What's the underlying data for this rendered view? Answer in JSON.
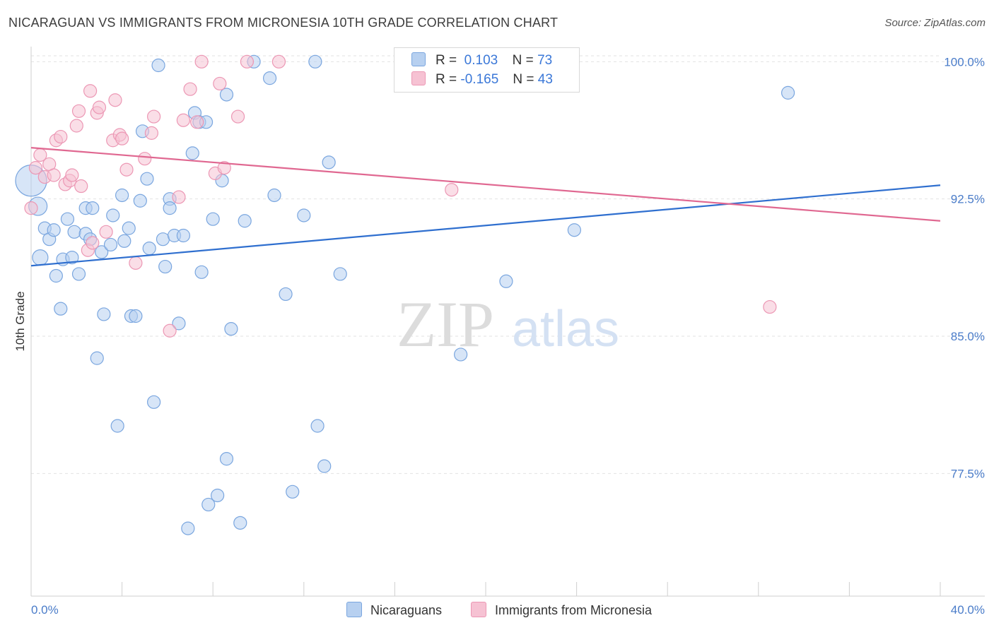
{
  "header": {
    "title": "NICARAGUAN VS IMMIGRANTS FROM MICRONESIA 10TH GRADE CORRELATION CHART",
    "source": "Source: ZipAtlas.com"
  },
  "watermark": {
    "zip": "ZIP",
    "atlas": "atlas"
  },
  "legend": {
    "r_label": "R =",
    "n_label": "N =",
    "series1": {
      "r": "0.103",
      "n": "73"
    },
    "series2": {
      "r": "-0.165",
      "n": "43"
    }
  },
  "colors": {
    "blue_fill": "#b7d0f0",
    "blue_stroke": "#7aa6df",
    "blue_line": "#2f6fcf",
    "pink_fill": "#f6c2d3",
    "pink_stroke": "#ec97b4",
    "pink_line": "#e06891",
    "grid": "#e2e2e2",
    "tick_text": "#4a7cc9"
  },
  "chart_data": {
    "type": "scatter",
    "title": "NICARAGUAN VS IMMIGRANTS FROM MICRONESIA 10TH GRADE CORRELATION CHART",
    "ylabel": "10th Grade",
    "xlim": [
      0,
      40
    ],
    "ylim": [
      70.8,
      100.9
    ],
    "x_tick_labels": [
      "0.0%",
      "40.0%"
    ],
    "y_ticks": [
      100.0,
      92.5,
      85.0,
      77.5
    ],
    "y_tick_labels": [
      "100.0%",
      "92.5%",
      "85.0%",
      "77.5%"
    ],
    "grid": true,
    "series": [
      {
        "name": "Nicaraguans",
        "trend": {
          "x": [
            0,
            40
          ],
          "y": [
            88.85,
            93.25
          ]
        },
        "points": [
          [
            0.0,
            93.5,
            22
          ],
          [
            0.3,
            92.1,
            13
          ],
          [
            0.4,
            89.3,
            11
          ],
          [
            0.6,
            90.9,
            9
          ],
          [
            0.8,
            90.3,
            9
          ],
          [
            1.0,
            90.8,
            9
          ],
          [
            1.1,
            88.3,
            9
          ],
          [
            1.3,
            86.5,
            9
          ],
          [
            1.4,
            89.2,
            9
          ],
          [
            1.6,
            91.4,
            9
          ],
          [
            1.8,
            89.3,
            9
          ],
          [
            1.9,
            90.7,
            9
          ],
          [
            2.1,
            88.4,
            9
          ],
          [
            2.4,
            90.6,
            9
          ],
          [
            2.4,
            92.0,
            9
          ],
          [
            2.6,
            90.3,
            9
          ],
          [
            2.7,
            92.0,
            9
          ],
          [
            2.9,
            83.8,
            9
          ],
          [
            3.1,
            89.6,
            9
          ],
          [
            3.2,
            86.2,
            9
          ],
          [
            3.5,
            90.0,
            9
          ],
          [
            3.6,
            91.6,
            9
          ],
          [
            3.8,
            80.1,
            9
          ],
          [
            4.0,
            92.7,
            9
          ],
          [
            4.1,
            90.2,
            9
          ],
          [
            4.3,
            90.9,
            9
          ],
          [
            4.4,
            86.1,
            9
          ],
          [
            4.6,
            86.1,
            9
          ],
          [
            4.8,
            92.4,
            9
          ],
          [
            4.9,
            96.2,
            9
          ],
          [
            5.1,
            93.6,
            9
          ],
          [
            5.2,
            89.8,
            9
          ],
          [
            5.4,
            81.4,
            9
          ],
          [
            5.6,
            99.8,
            9
          ],
          [
            5.8,
            90.3,
            9
          ],
          [
            5.9,
            88.8,
            9
          ],
          [
            6.1,
            92.5,
            9
          ],
          [
            6.1,
            92.0,
            9
          ],
          [
            6.3,
            90.5,
            9
          ],
          [
            6.5,
            85.7,
            9
          ],
          [
            6.7,
            90.5,
            9
          ],
          [
            6.9,
            74.5,
            9
          ],
          [
            7.1,
            95.0,
            9
          ],
          [
            7.2,
            97.2,
            9
          ],
          [
            7.4,
            96.7,
            9
          ],
          [
            7.5,
            88.5,
            9
          ],
          [
            7.7,
            96.7,
            9
          ],
          [
            7.8,
            75.8,
            9
          ],
          [
            8.0,
            91.4,
            9
          ],
          [
            8.2,
            76.3,
            9
          ],
          [
            8.4,
            93.5,
            9
          ],
          [
            8.6,
            98.2,
            9
          ],
          [
            8.6,
            78.3,
            9
          ],
          [
            8.8,
            85.4,
            9
          ],
          [
            9.2,
            74.8,
            9
          ],
          [
            9.4,
            91.3,
            9
          ],
          [
            9.8,
            100.0,
            9
          ],
          [
            10.5,
            99.1,
            9
          ],
          [
            10.7,
            92.7,
            9
          ],
          [
            11.2,
            87.3,
            9
          ],
          [
            11.5,
            76.5,
            9
          ],
          [
            12.0,
            91.6,
            9
          ],
          [
            12.5,
            100.0,
            9
          ],
          [
            12.6,
            80.1,
            9
          ],
          [
            12.9,
            77.9,
            9
          ],
          [
            13.1,
            94.5,
            9
          ],
          [
            13.6,
            88.4,
            9
          ],
          [
            17.1,
            100.0,
            9
          ],
          [
            18.9,
            84.0,
            9
          ],
          [
            20.7,
            100.0,
            9
          ],
          [
            20.9,
            88.0,
            9
          ],
          [
            23.9,
            90.8,
            9
          ],
          [
            33.3,
            98.3,
            9
          ]
        ]
      },
      {
        "name": "Immigrants from Micronesia",
        "trend": {
          "x": [
            0,
            40
          ],
          "y": [
            95.3,
            91.3
          ]
        },
        "points": [
          [
            0.0,
            92.0,
            9
          ],
          [
            0.2,
            94.2,
            9
          ],
          [
            0.4,
            94.9,
            9
          ],
          [
            0.6,
            93.7,
            9
          ],
          [
            0.8,
            94.4,
            9
          ],
          [
            1.0,
            93.8,
            9
          ],
          [
            1.1,
            95.7,
            9
          ],
          [
            1.3,
            95.9,
            9
          ],
          [
            1.5,
            93.3,
            9
          ],
          [
            1.7,
            93.5,
            9
          ],
          [
            1.8,
            93.8,
            9
          ],
          [
            2.0,
            96.5,
            9
          ],
          [
            2.1,
            97.3,
            9
          ],
          [
            2.2,
            93.2,
            9
          ],
          [
            2.5,
            89.7,
            9
          ],
          [
            2.6,
            98.4,
            9
          ],
          [
            2.7,
            90.1,
            9
          ],
          [
            2.9,
            97.2,
            9
          ],
          [
            3.0,
            97.5,
            9
          ],
          [
            3.3,
            90.7,
            9
          ],
          [
            3.6,
            95.7,
            9
          ],
          [
            3.7,
            97.9,
            9
          ],
          [
            3.9,
            96.0,
            9
          ],
          [
            4.0,
            95.8,
            9
          ],
          [
            4.2,
            94.1,
            9
          ],
          [
            4.6,
            89.0,
            9
          ],
          [
            5.0,
            94.7,
            9
          ],
          [
            5.3,
            96.1,
            9
          ],
          [
            5.4,
            97.0,
            9
          ],
          [
            6.1,
            85.3,
            9
          ],
          [
            6.5,
            92.6,
            9
          ],
          [
            6.7,
            96.8,
            9
          ],
          [
            7.0,
            98.5,
            9
          ],
          [
            7.3,
            96.7,
            9
          ],
          [
            7.5,
            100.0,
            9
          ],
          [
            8.1,
            93.9,
            9
          ],
          [
            8.3,
            98.8,
            9
          ],
          [
            8.5,
            94.2,
            9
          ],
          [
            9.1,
            97.0,
            9
          ],
          [
            9.5,
            100.0,
            9
          ],
          [
            10.9,
            100.0,
            9
          ],
          [
            18.5,
            93.0,
            9
          ],
          [
            32.5,
            86.6,
            9
          ]
        ]
      }
    ]
  }
}
